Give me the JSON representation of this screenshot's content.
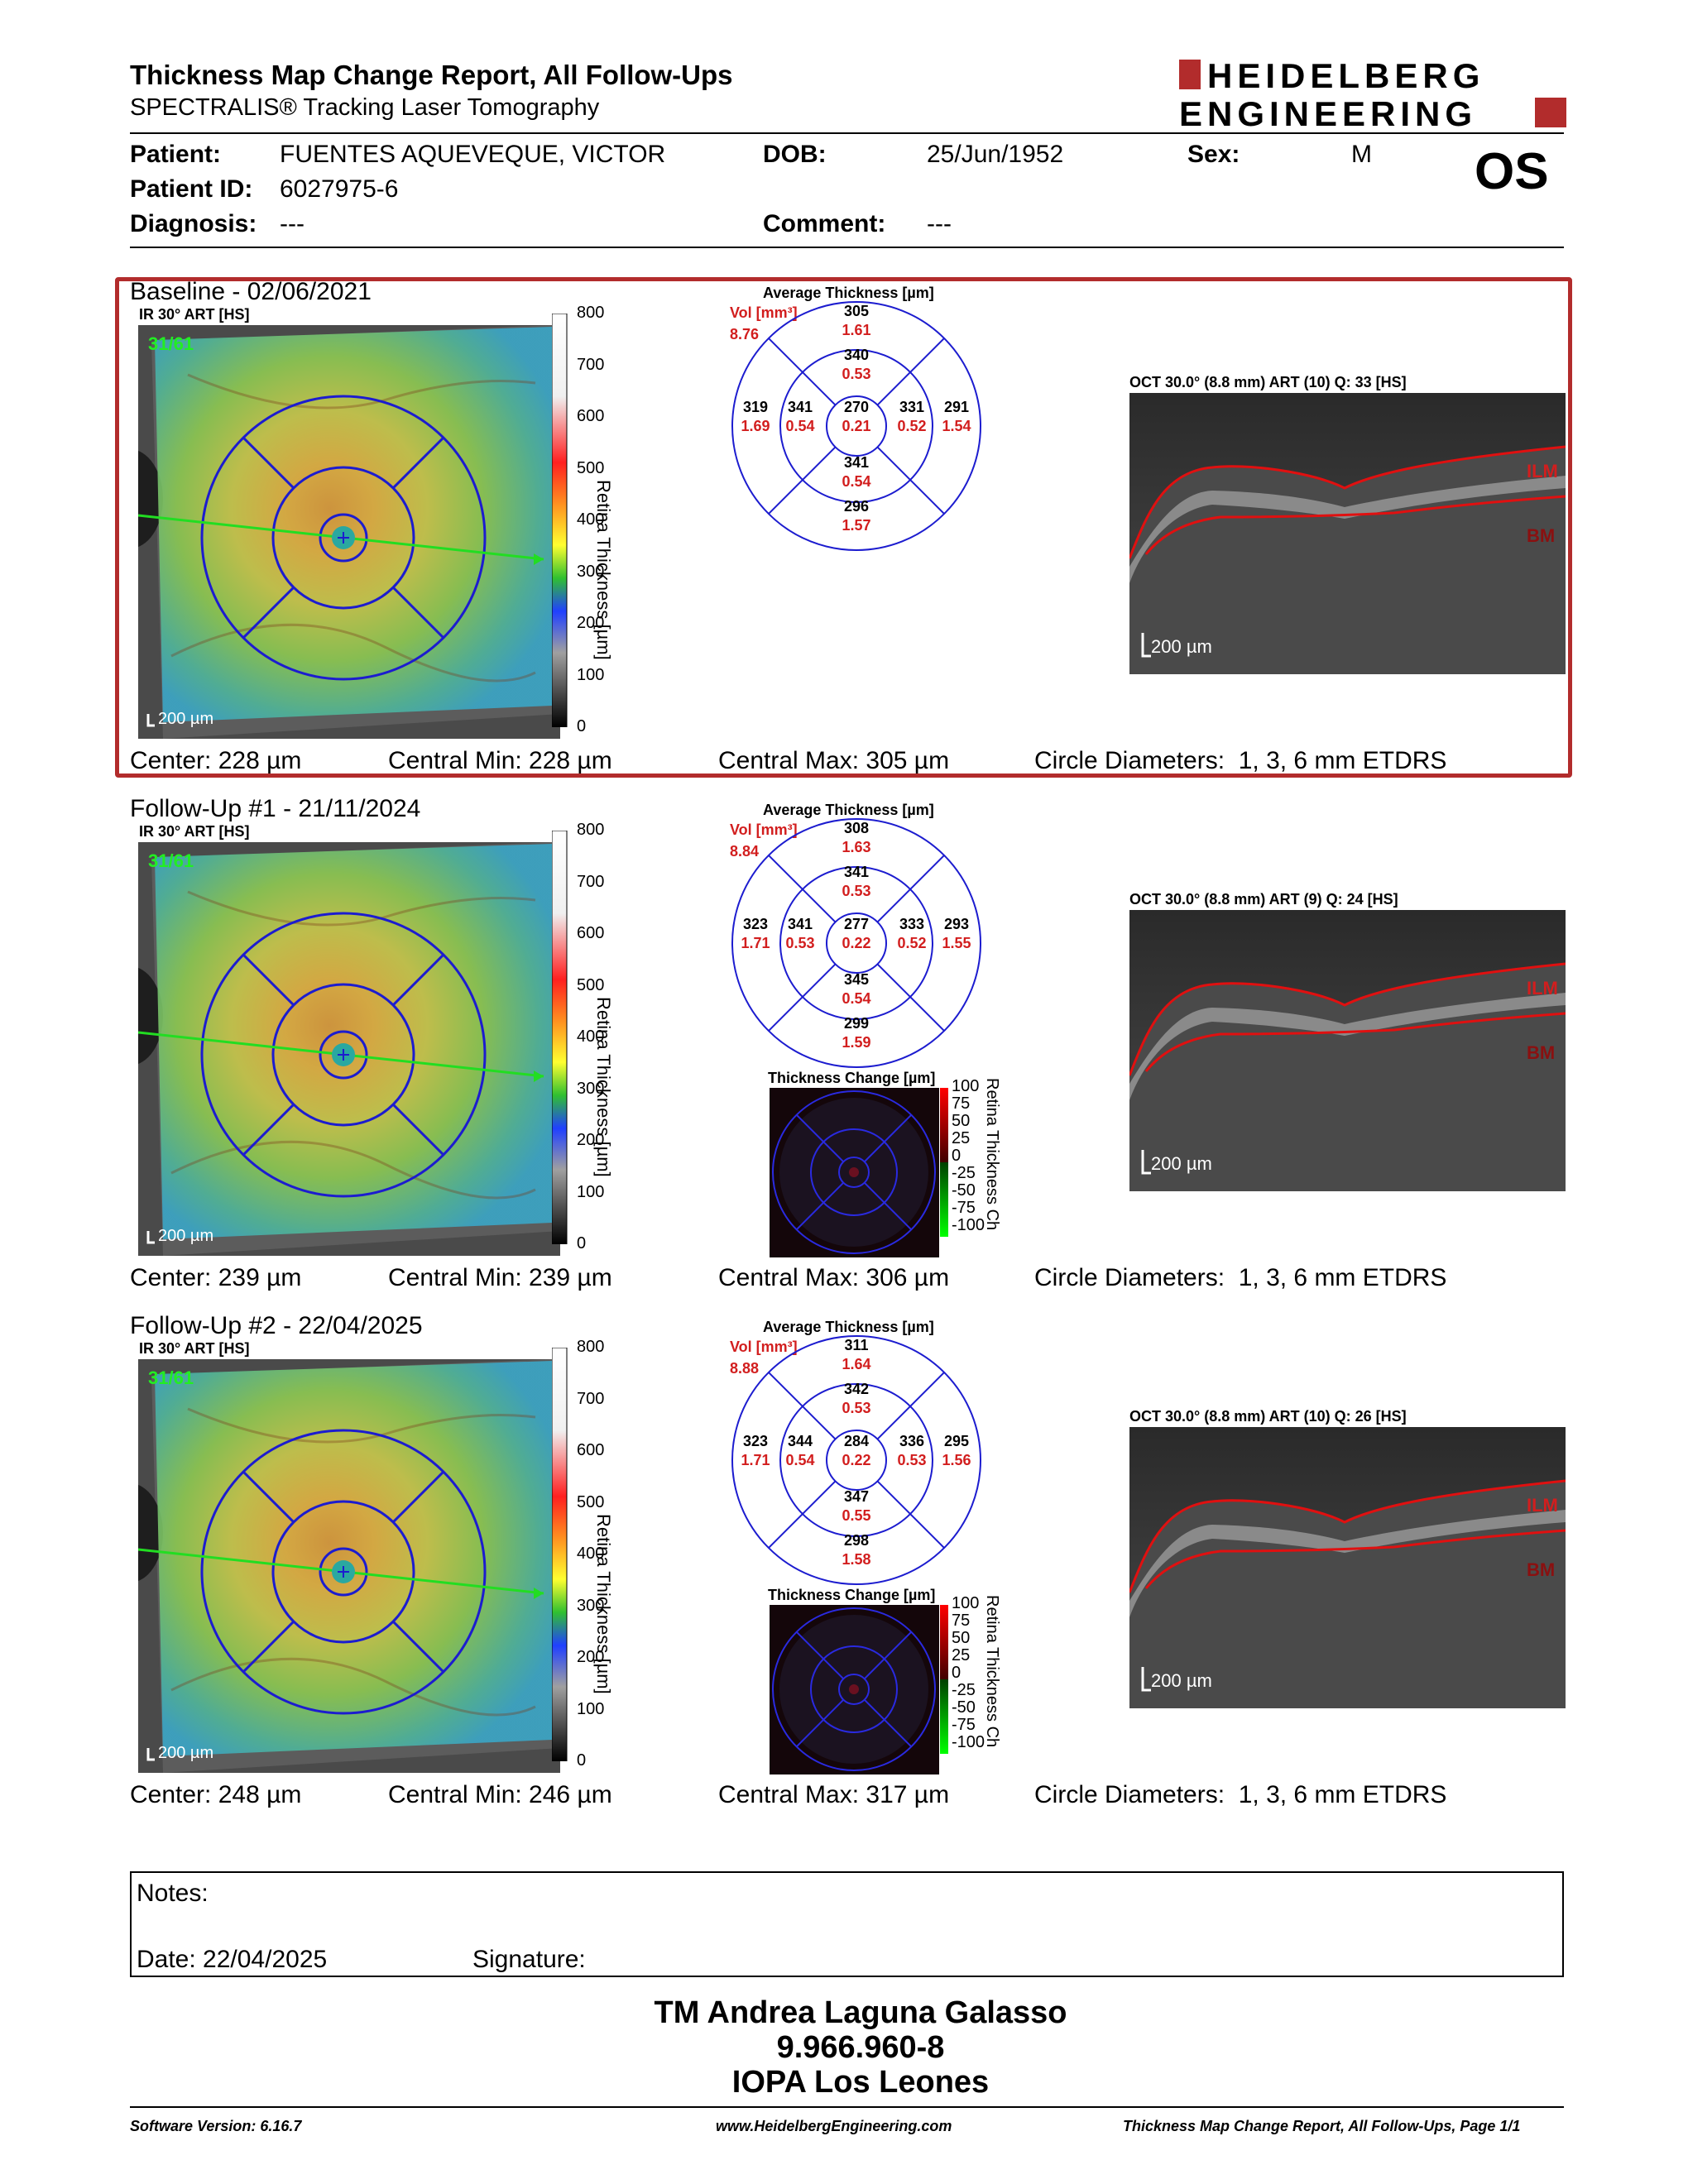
{
  "header": {
    "title": "Thickness Map Change Report, All Follow-Ups",
    "subtitle": "SPECTRALIS® Tracking Laser Tomography",
    "logo_line1": "HEIDELBERG",
    "logo_line2": "ENGINEERING",
    "eye": "OS"
  },
  "patient": {
    "patient_label": "Patient:",
    "patient_value": "FUENTES AQUEVEQUE, VICTOR",
    "dob_label": "DOB:",
    "dob_value": "25/Jun/1952",
    "sex_label": "Sex:",
    "sex_value": "M",
    "id_label": "Patient ID:",
    "id_value": "6027975-6",
    "diagnosis_label": "Diagnosis:",
    "diagnosis_value": "---",
    "comment_label": "Comment:",
    "comment_value": "---"
  },
  "common": {
    "ir_label": "IR 30° ART [HS]",
    "fundus_scale": "200 µm",
    "fundus_overlay_text": "31/61",
    "avg_title": "Average Thickness [µm]",
    "vol_label": "Vol [mm³]",
    "change_title": "Thickness Change [µm]",
    "scale_axis": "Retina Thickness [µm]",
    "change_axis": "Retina Thickness Ch",
    "oct_scale": "200 µm",
    "ilm": "ILM",
    "bm": "BM",
    "scale_ticks": [
      "800",
      "700",
      "600",
      "500",
      "400",
      "300",
      "200",
      "100",
      "0"
    ],
    "change_ticks": [
      "100",
      "75",
      "50",
      "25",
      "0",
      "-25",
      "-50",
      "-75",
      "-100"
    ],
    "accent_red": "#b22c2c",
    "grid_blue": "#1c1ccf"
  },
  "sections": [
    {
      "title": "Baseline - 02/06/2021",
      "oct_label": "OCT 30.0° (8.8 mm) ART (10) Q: 33 [HS]",
      "vol_total": "8.76",
      "etdrs": {
        "sup_outer": [
          "305",
          "1.61"
        ],
        "sup_inner": [
          "340",
          "0.53"
        ],
        "temp_outer": [
          "319",
          "1.69"
        ],
        "temp_inner": [
          "341",
          "0.54"
        ],
        "center": [
          "270",
          "0.21"
        ],
        "nas_inner": [
          "331",
          "0.52"
        ],
        "nas_outer": [
          "291",
          "1.54"
        ],
        "inf_inner": [
          "341",
          "0.54"
        ],
        "inf_outer": [
          "296",
          "1.57"
        ]
      },
      "center": "Center: 228 µm",
      "central_min": "Central Min: 228 µm",
      "central_max": "Central Max: 305 µm",
      "circles": "Circle Diameters:  1, 3, 6 mm ETDRS"
    },
    {
      "title": "Follow-Up #1 - 21/11/2024",
      "oct_label": "OCT 30.0° (8.8 mm) ART (9) Q: 24 [HS]",
      "vol_total": "8.84",
      "etdrs": {
        "sup_outer": [
          "308",
          "1.63"
        ],
        "sup_inner": [
          "341",
          "0.53"
        ],
        "temp_outer": [
          "323",
          "1.71"
        ],
        "temp_inner": [
          "341",
          "0.53"
        ],
        "center": [
          "277",
          "0.22"
        ],
        "nas_inner": [
          "333",
          "0.52"
        ],
        "nas_outer": [
          "293",
          "1.55"
        ],
        "inf_inner": [
          "345",
          "0.54"
        ],
        "inf_outer": [
          "299",
          "1.59"
        ]
      },
      "center": "Center: 239 µm",
      "central_min": "Central Min: 239 µm",
      "central_max": "Central Max: 306 µm",
      "circles": "Circle Diameters:  1, 3, 6 mm ETDRS"
    },
    {
      "title": "Follow-Up #2 - 22/04/2025",
      "oct_label": "OCT 30.0° (8.8 mm) ART (10) Q: 26 [HS]",
      "vol_total": "8.88",
      "etdrs": {
        "sup_outer": [
          "311",
          "1.64"
        ],
        "sup_inner": [
          "342",
          "0.53"
        ],
        "temp_outer": [
          "323",
          "1.71"
        ],
        "temp_inner": [
          "344",
          "0.54"
        ],
        "center": [
          "284",
          "0.22"
        ],
        "nas_inner": [
          "336",
          "0.53"
        ],
        "nas_outer": [
          "295",
          "1.56"
        ],
        "inf_inner": [
          "347",
          "0.55"
        ],
        "inf_outer": [
          "298",
          "1.58"
        ]
      },
      "center": "Center: 248 µm",
      "central_min": "Central Min: 246 µm",
      "central_max": "Central Max: 317 µm",
      "circles": "Circle Diameters:  1, 3, 6 mm ETDRS"
    }
  ],
  "notes": {
    "notes_label": "Notes:",
    "date_label": "Date: 22/04/2025",
    "signature_label": "Signature:"
  },
  "signature_block": {
    "line1": "TM Andrea Laguna Galasso",
    "line2": "9.966.960-8",
    "line3": "IOPA Los Leones"
  },
  "footer": {
    "software": "Software Version: 6.16.7",
    "website": "www.HeidelbergEngineering.com",
    "page": "Thickness Map Change Report, All Follow-Ups, Page 1/1"
  }
}
